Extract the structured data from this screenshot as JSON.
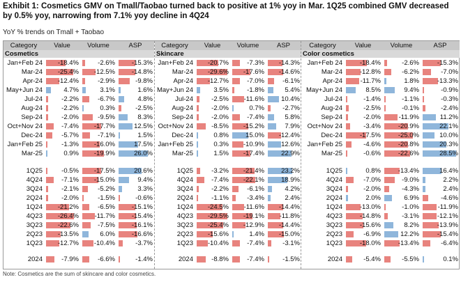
{
  "title": "Exhibit 1: Cosmetics GMV on Tmall/Taobao turned back to positive at 1% yoy in Mar. 1Q25 combined GMV decreased by 0.5% yoy, narrowing from 7.1% yoy decline in 4Q24",
  "subtitle": "YoY % trends on Tmall + Taobao",
  "note": "Note: Cosmetics are the sum of skincare and color cosmetics.",
  "headers": [
    "Category",
    "Value",
    "Volume",
    "ASP"
  ],
  "panels": [
    {
      "name": "Cosmetics",
      "monthly": [
        {
          "label": "Jan+Feb 24",
          "value": "-18.4%",
          "volume": "-2.6%",
          "asp": "-15.3%"
        },
        {
          "label": "Mar-24",
          "value": "-25.4%",
          "volume": "-12.5%",
          "asp": "-14.8%"
        },
        {
          "label": "Apr-24",
          "value": "-12.4%",
          "volume": "-2.9%",
          "asp": "-9.8%"
        },
        {
          "label": "May+Jun 24",
          "value": "4.7%",
          "volume": "3.1%",
          "asp": "1.6%"
        },
        {
          "label": "Jul-24",
          "value": "-2.2%",
          "volume": "-6.7%",
          "asp": "4.8%"
        },
        {
          "label": "Aug-24",
          "value": "-2.2%",
          "volume": "0.3%",
          "asp": "-2.5%"
        },
        {
          "label": "Sep-24",
          "value": "-2.0%",
          "volume": "-9.5%",
          "asp": "8.3%"
        },
        {
          "label": "Oct+Nov 24",
          "value": "-7.4%",
          "volume": "-17.7%",
          "asp": "12.5%"
        },
        {
          "label": "Dec-24",
          "value": "-5.7%",
          "volume": "-7.1%",
          "asp": "1.5%"
        },
        {
          "label": "Jan+Feb 25",
          "value": "-1.3%",
          "volume": "-16.0%",
          "asp": "17.5%"
        },
        {
          "label": "Mar-25",
          "value": "0.9%",
          "volume": "-19.9%",
          "asp": "26.0%"
        }
      ],
      "quarterly": [
        {
          "label": "1Q25",
          "value": "-0.5%",
          "volume": "-17.5%",
          "asp": "20.6%"
        },
        {
          "label": "4Q24",
          "value": "-7.1%",
          "volume": "-15.0%",
          "asp": "9.4%"
        },
        {
          "label": "3Q24",
          "value": "-2.1%",
          "volume": "-5.2%",
          "asp": "3.3%"
        },
        {
          "label": "2Q24",
          "value": "-2.0%",
          "volume": "-1.5%",
          "asp": "-0.6%"
        },
        {
          "label": "1Q24",
          "value": "-21.2%",
          "volume": "-6.5%",
          "asp": "-15.1%"
        },
        {
          "label": "4Q23",
          "value": "-26.4%",
          "volume": "-11.7%",
          "asp": "-15.4%"
        },
        {
          "label": "3Q23",
          "value": "-22.6%",
          "volume": "-7.5%",
          "asp": "-16.1%"
        },
        {
          "label": "2Q23",
          "value": "-13.5%",
          "volume": "6.0%",
          "asp": "-16.6%"
        },
        {
          "label": "1Q23",
          "value": "-12.7%",
          "volume": "-10.4%",
          "asp": "-3.7%"
        }
      ],
      "annual": {
        "label": "2024",
        "value": "-7.9%",
        "volume": "-6.6%",
        "asp": "-1.4%"
      }
    },
    {
      "name": "Skincare",
      "monthly": [
        {
          "label": "Jan+Feb 24",
          "value": "-20.7%",
          "volume": "-7.3%",
          "asp": "-14.3%"
        },
        {
          "label": "Mar-24",
          "value": "-29.6%",
          "volume": "-17.6%",
          "asp": "-14.6%"
        },
        {
          "label": "Apr-24",
          "value": "-12.7%",
          "volume": "-7.0%",
          "asp": "-6.1%"
        },
        {
          "label": "May+Jun 24",
          "value": "3.5%",
          "volume": "-1.8%",
          "asp": "5.4%"
        },
        {
          "label": "Jul-24",
          "value": "-2.5%",
          "volume": "-11.6%",
          "asp": "10.4%"
        },
        {
          "label": "Aug-24",
          "value": "-2.0%",
          "volume": "0.7%",
          "asp": "-2.7%"
        },
        {
          "label": "Sep-24",
          "value": "-2.0%",
          "volume": "-7.4%",
          "asp": "5.8%"
        },
        {
          "label": "Oct+Nov 24",
          "value": "-8.5%",
          "volume": "-15.2%",
          "asp": "7.9%"
        },
        {
          "label": "Dec-24",
          "value": "0.8%",
          "volume": "15.0%",
          "asp": "-12.4%"
        },
        {
          "label": "Jan+Feb 25",
          "value": "0.3%",
          "volume": "-10.9%",
          "asp": "12.6%"
        },
        {
          "label": "Mar-25",
          "value": "1.5%",
          "volume": "-17.4%",
          "asp": "22.9%"
        }
      ],
      "quarterly": [
        {
          "label": "1Q25",
          "value": "-3.2%",
          "volume": "-21.4%",
          "asp": "23.2%"
        },
        {
          "label": "4Q24",
          "value": "-7.4%",
          "volume": "-22.1%",
          "asp": "18.9%"
        },
        {
          "label": "3Q24",
          "value": "-2.2%",
          "volume": "-6.1%",
          "asp": "4.2%"
        },
        {
          "label": "2Q24",
          "value": "-1.1%",
          "volume": "-3.4%",
          "asp": "2.4%"
        },
        {
          "label": "1Q24",
          "value": "-24.5%",
          "volume": "-11.6%",
          "asp": "-14.4%"
        },
        {
          "label": "4Q23",
          "value": "-29.5%",
          "volume": "-19.1%",
          "asp": "-11.8%"
        },
        {
          "label": "3Q23",
          "value": "-25.4%",
          "volume": "-12.9%",
          "asp": "-14.4%"
        },
        {
          "label": "2Q23",
          "value": "-15.6%",
          "volume": "1.4%",
          "asp": "-15.0%"
        },
        {
          "label": "1Q23",
          "value": "-10.4%",
          "volume": "-7.4%",
          "asp": "-3.1%"
        }
      ],
      "annual": {
        "label": "2024",
        "value": "-8.8%",
        "volume": "-7.4%",
        "asp": "-1.5%"
      }
    },
    {
      "name": "Color cosmetics",
      "monthly": [
        {
          "label": "Jan+Feb 24",
          "value": "-18.4%",
          "volume": "-2.6%",
          "asp": "-15.3%"
        },
        {
          "label": "Mar-24",
          "value": "-12.8%",
          "volume": "-6.2%",
          "asp": "-7.0%"
        },
        {
          "label": "Apr-24",
          "value": "-11.7%",
          "volume": "1.8%",
          "asp": "-13.3%"
        },
        {
          "label": "May+Jun 24",
          "value": "8.5%",
          "volume": "9.4%",
          "asp": "-0.9%"
        },
        {
          "label": "Jul-24",
          "value": "-1.4%",
          "volume": "-1.1%",
          "asp": "-0.3%"
        },
        {
          "label": "Aug-24",
          "value": "-2.5%",
          "volume": "-0.1%",
          "asp": "-2.4%"
        },
        {
          "label": "Sep-24",
          "value": "-2.0%",
          "volume": "-11.9%",
          "asp": "11.2%"
        },
        {
          "label": "Oct+Nov 24",
          "value": "-3.4%",
          "volume": "-20.9%",
          "asp": "22.1%"
        },
        {
          "label": "Dec-24",
          "value": "-17.5%",
          "volume": "-25.0%",
          "asp": "10.0%"
        },
        {
          "label": "Jan+Feb 25",
          "value": "-4.6%",
          "volume": "-20.8%",
          "asp": "20.3%"
        },
        {
          "label": "Mar-25",
          "value": "-0.6%",
          "volume": "-22.6%",
          "asp": "28.5%"
        }
      ],
      "quarterly": [
        {
          "label": "1Q25",
          "value": "0.8%",
          "volume": "-13.4%",
          "asp": "16.4%"
        },
        {
          "label": "4Q24",
          "value": "-7.0%",
          "volume": "-9.0%",
          "asp": "2.2%"
        },
        {
          "label": "3Q24",
          "value": "-2.0%",
          "volume": "-4.3%",
          "asp": "2.4%"
        },
        {
          "label": "2Q24",
          "value": "2.0%",
          "volume": "6.9%",
          "asp": "-4.6%"
        },
        {
          "label": "1Q24",
          "value": "-13.0%",
          "volume": "-1.0%",
          "asp": "-11.9%"
        },
        {
          "label": "4Q23",
          "value": "-14.8%",
          "volume": "-3.1%",
          "asp": "-12.1%"
        },
        {
          "label": "3Q23",
          "value": "-15.6%",
          "volume": "8.2%",
          "asp": "-13.9%"
        },
        {
          "label": "2Q23",
          "value": "-6.9%",
          "volume": "12.2%",
          "asp": "-15.4%"
        },
        {
          "label": "1Q23",
          "value": "-18.0%",
          "volume": "-13.4%",
          "asp": "-6.4%"
        }
      ],
      "annual": {
        "label": "2024",
        "value": "-5.4%",
        "volume": "-5.5%",
        "asp": "0.1%"
      }
    }
  ],
  "colors": {
    "negative": "#e8837e",
    "positive": "#8fb6db",
    "header": "#c8c8c8",
    "subheader": "#d9d9d9"
  }
}
